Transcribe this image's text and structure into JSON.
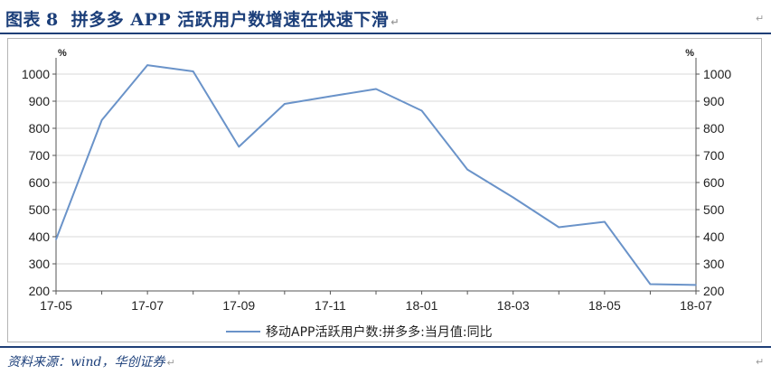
{
  "figure": {
    "label": "图表",
    "number": "8",
    "title": "拼多多 APP 活跃用户数增速在快速下滑"
  },
  "source": "资料来源：wind，华创证券",
  "paragraph_mark": "↵",
  "chart_data": {
    "type": "line",
    "title": "",
    "ylabel_left": "%",
    "ylabel_right": "%",
    "ylim": [
      200,
      1000
    ],
    "yticks": [
      200,
      300,
      400,
      500,
      600,
      700,
      800,
      900,
      1000
    ],
    "xticks": [
      "17-05",
      "17-07",
      "17-09",
      "17-11",
      "18-01",
      "18-03",
      "18-05",
      "18-07"
    ],
    "x": [
      "17-05",
      "17-06",
      "17-07",
      "17-08",
      "17-09",
      "17-10",
      "17-11",
      "17-12",
      "18-01",
      "18-02",
      "18-03",
      "18-04",
      "18-05",
      "18-06",
      "18-07"
    ],
    "series": [
      {
        "name": "移动APP活跃用户数:拼多多:当月值:同比",
        "color": "#6a93c9",
        "values": [
          390,
          830,
          1033,
          1010,
          732,
          890,
          918,
          945,
          865,
          648,
          545,
          435,
          455,
          225,
          222
        ]
      }
    ],
    "grid": "horizontal",
    "legend_position": "bottom-center"
  }
}
